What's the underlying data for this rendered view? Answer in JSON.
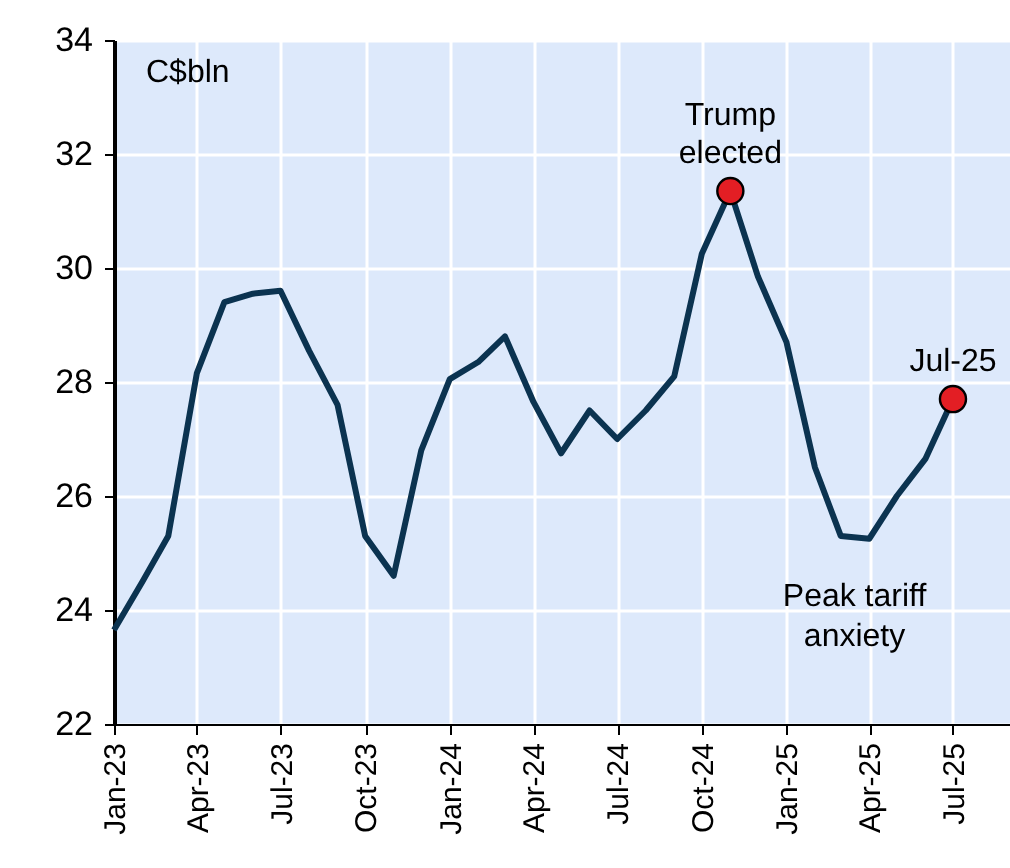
{
  "chart_data": {
    "type": "line",
    "ylabel": "C$bln",
    "x": [
      "2023-01",
      "2023-02",
      "2023-03",
      "2023-04",
      "2023-05",
      "2023-06",
      "2023-07",
      "2023-08",
      "2023-09",
      "2023-10",
      "2023-11",
      "2023-12",
      "2024-01",
      "2024-02",
      "2024-03",
      "2024-04",
      "2024-05",
      "2024-06",
      "2024-07",
      "2024-08",
      "2024-09",
      "2024-10",
      "2024-11",
      "2024-12",
      "2025-01",
      "2025-02",
      "2025-03",
      "2025-04",
      "2025-05",
      "2025-06",
      "2025-07"
    ],
    "series": [
      {
        "color": "#0b3350",
        "values": [
          23.65,
          24.5,
          25.3,
          28.15,
          29.4,
          29.55,
          29.6,
          28.55,
          27.6,
          25.3,
          24.6,
          26.8,
          28.05,
          28.35,
          28.8,
          27.65,
          26.75,
          27.5,
          27.0,
          27.5,
          28.1,
          30.25,
          31.35,
          29.85,
          28.7,
          26.5,
          25.3,
          25.25,
          26.0,
          26.65,
          27.7
        ]
      },
      {
        "type": "scatter",
        "marker": "circle",
        "color": "#e31e24",
        "x": [
          "2024-11",
          "2025-07"
        ],
        "values": [
          31.35,
          27.7
        ]
      }
    ],
    "xlim": [
      "2023-01",
      "2025-09"
    ],
    "xticks": [
      {
        "value": "2023-01",
        "label": "Jan-23"
      },
      {
        "value": "2023-04",
        "label": "Apr-23"
      },
      {
        "value": "2023-07",
        "label": "Jul-23"
      },
      {
        "value": "2023-10",
        "label": "Oct-23"
      },
      {
        "value": "2024-01",
        "label": "Jan-24"
      },
      {
        "value": "2024-04",
        "label": "Apr-24"
      },
      {
        "value": "2024-07",
        "label": "Jul-24"
      },
      {
        "value": "2024-10",
        "label": "Oct-24"
      },
      {
        "value": "2025-01",
        "label": "Jan-25"
      },
      {
        "value": "2025-04",
        "label": "Apr-25"
      },
      {
        "value": "2025-07",
        "label": "Jul-25"
      }
    ],
    "ylim": [
      22,
      34
    ],
    "yticks": [
      22,
      24,
      26,
      28,
      30,
      32,
      34
    ],
    "grid": true,
    "line_style": "solid",
    "marker": "none",
    "annotations": [
      {
        "text": "Trump\nelected",
        "x": "2024-11",
        "y": 31.35
      },
      {
        "text": "Jul-25",
        "x": "2025-07",
        "y": 27.7
      },
      {
        "text": "Peak tariff\nanxiety",
        "x": "2025-03-16",
        "y": 25.3
      }
    ]
  }
}
